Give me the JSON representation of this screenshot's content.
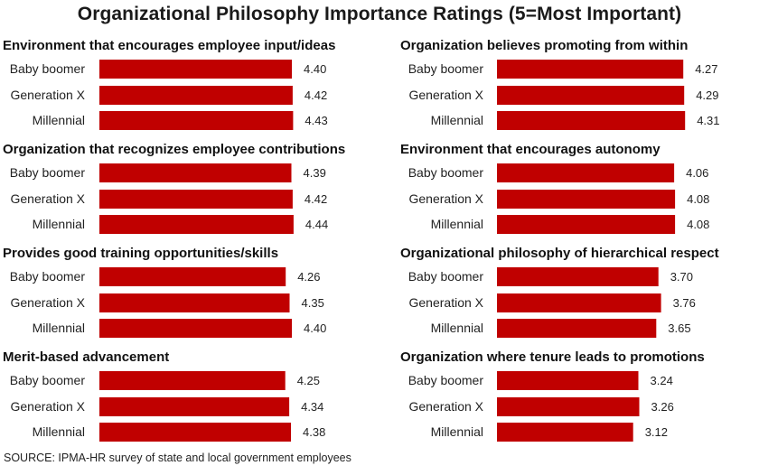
{
  "title": "Organizational Philosophy Importance Ratings (5=Most Important)",
  "source": "SOURCE: IPMA-HR survey of state and local government employees",
  "colors": {
    "bar": "#c00000",
    "text": "#1a1a1a"
  },
  "chart_data": [
    {
      "type": "bar",
      "orientation": "horizontal",
      "title": "Environment that encourages employee input/ideas",
      "categories": [
        "Baby boomer",
        "Generation X",
        "Millennial"
      ],
      "values": [
        4.4,
        4.42,
        4.43
      ],
      "value_labels": [
        "4.40",
        "4.42",
        "4.43"
      ]
    },
    {
      "type": "bar",
      "orientation": "horizontal",
      "title": "Organization that recognizes employee contributions",
      "categories": [
        "Baby boomer",
        "Generation X",
        "Millennial"
      ],
      "values": [
        4.39,
        4.42,
        4.44
      ],
      "value_labels": [
        "4.39",
        "4.42",
        "4.44"
      ]
    },
    {
      "type": "bar",
      "orientation": "horizontal",
      "title": "Provides good training opportunities/skills",
      "categories": [
        "Baby boomer",
        "Generation X",
        "Millennial"
      ],
      "values": [
        4.26,
        4.35,
        4.4
      ],
      "value_labels": [
        "4.26",
        "4.35",
        "4.40"
      ]
    },
    {
      "type": "bar",
      "orientation": "horizontal",
      "title": "Merit-based advancement",
      "categories": [
        "Baby boomer",
        "Generation X",
        "Millennial"
      ],
      "values": [
        4.25,
        4.34,
        4.38
      ],
      "value_labels": [
        "4.25",
        "4.34",
        "4.38"
      ]
    },
    {
      "type": "bar",
      "orientation": "horizontal",
      "title": "Organization believes promoting from within",
      "categories": [
        "Baby boomer",
        "Generation X",
        "Millennial"
      ],
      "values": [
        4.27,
        4.29,
        4.31
      ],
      "value_labels": [
        "4.27",
        "4.29",
        "4.31"
      ]
    },
    {
      "type": "bar",
      "orientation": "horizontal",
      "title": "Environment that encourages autonomy",
      "categories": [
        "Baby boomer",
        "Generation X",
        "Millennial"
      ],
      "values": [
        4.06,
        4.08,
        4.08
      ],
      "value_labels": [
        "4.06",
        "4.08",
        "4.08"
      ]
    },
    {
      "type": "bar",
      "orientation": "horizontal",
      "title": "Organizational philosophy of hierarchical respect",
      "categories": [
        "Baby boomer",
        "Generation X",
        "Millennial"
      ],
      "values": [
        3.7,
        3.76,
        3.65
      ],
      "value_labels": [
        "3.70",
        "3.76",
        "3.65"
      ]
    },
    {
      "type": "bar",
      "orientation": "horizontal",
      "title": "Organization where tenure leads to promotions",
      "categories": [
        "Baby boomer",
        "Generation X",
        "Millennial"
      ],
      "values": [
        3.24,
        3.26,
        3.12
      ],
      "value_labels": [
        "3.24",
        "3.26",
        "3.12"
      ]
    }
  ]
}
